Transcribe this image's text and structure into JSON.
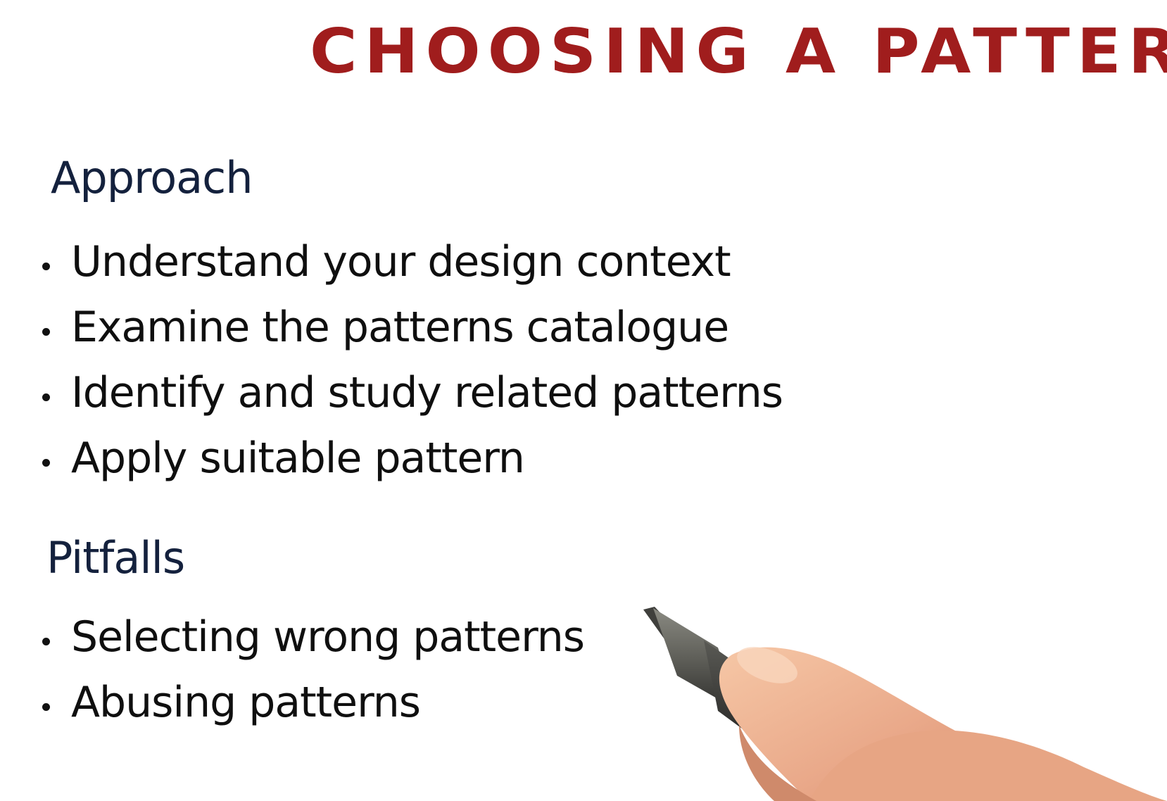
{
  "title": "CHOOSING A PATTERN",
  "approach": {
    "heading": "Approach",
    "items": [
      "Understand your design context",
      "Examine the patterns catalogue",
      "Identify and study related patterns",
      "Apply suitable pattern"
    ]
  },
  "pitfalls": {
    "heading": "Pitfalls",
    "items": [
      "Selecting wrong patterns",
      "Abusing patterns"
    ]
  },
  "colors": {
    "title": "#a01d1d",
    "heading": "#14213d",
    "text": "#0f0f0f",
    "background": "#ffffff"
  },
  "icons": {
    "hand": "hand-holding-marker-icon"
  }
}
